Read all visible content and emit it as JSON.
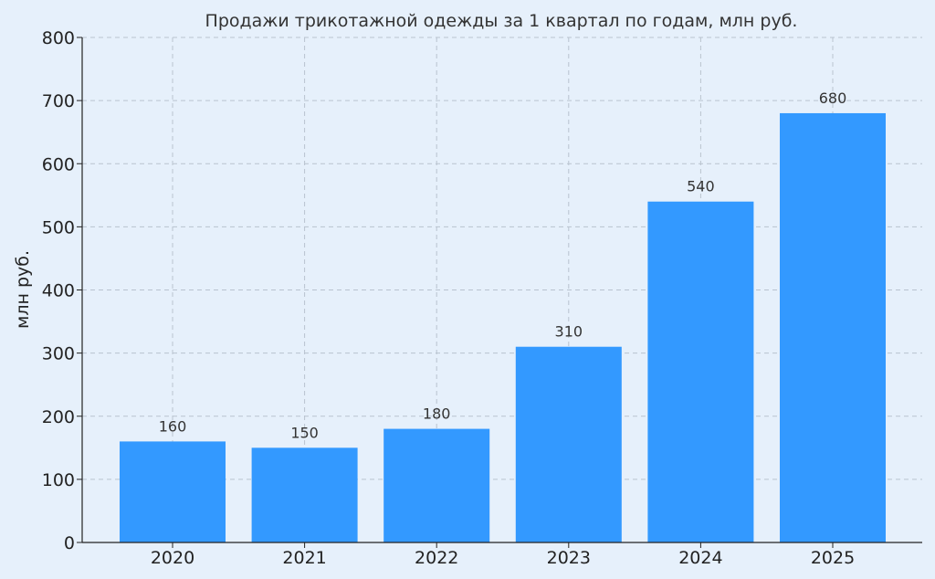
{
  "chart_data": {
    "type": "bar",
    "title": "Продажи трикотажной одежды за 1 квартал по годам, млн руб.",
    "xlabel": "",
    "ylabel": "млн руб.",
    "categories": [
      "2020",
      "2021",
      "2022",
      "2023",
      "2024",
      "2025"
    ],
    "values": [
      160,
      150,
      180,
      310,
      540,
      680
    ],
    "data_labels": [
      "160",
      "150",
      "180",
      "310",
      "540",
      "680"
    ],
    "ylim": [
      0,
      800
    ],
    "yticks": [
      0,
      100,
      200,
      300,
      400,
      500,
      600,
      700,
      800
    ],
    "grid": true,
    "legend": "none",
    "colors": {
      "bar": "#3399ff",
      "background": "#e6f0fb",
      "grid": "#b9c3cf",
      "axis": "#222222"
    }
  }
}
